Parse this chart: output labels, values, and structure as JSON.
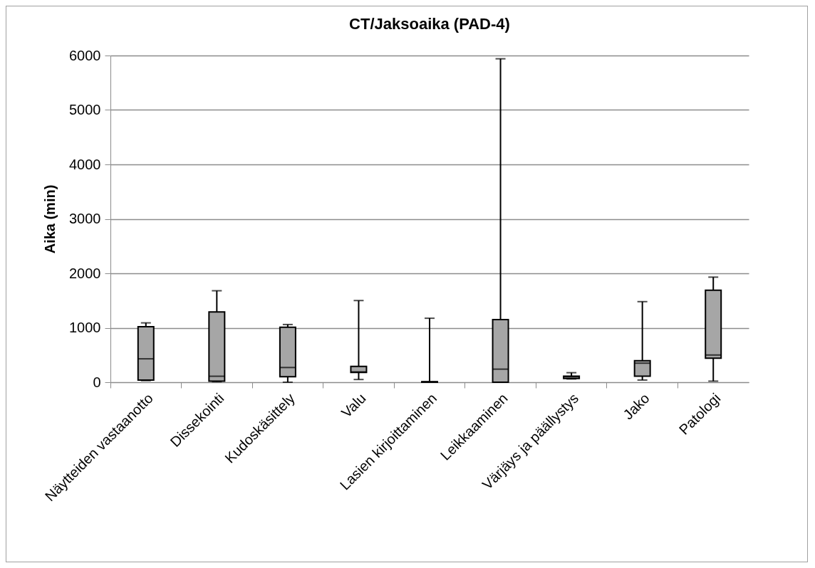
{
  "chart_data": {
    "type": "box",
    "title": "CT/Jaksoaika (PAD-4)",
    "ylabel": "Aika (min)",
    "categories": [
      "Näytteiden vastaanotto",
      "Dissekointi",
      "Kudoskäsittely",
      "Valu",
      "Lasien kirjoittaminen",
      "Leikkaaminen",
      "Värjäys ja päällystys",
      "Jako",
      "Patologi"
    ],
    "series": [
      {
        "color": "#a6a6a6",
        "boxes": [
          {
            "low": 30,
            "q1": 40,
            "median": 430,
            "q3": 1020,
            "high": 1090
          },
          {
            "low": 10,
            "q1": 20,
            "median": 110,
            "q3": 1290,
            "high": 1680
          },
          {
            "low": 0,
            "q1": 100,
            "median": 270,
            "q3": 1010,
            "high": 1060
          },
          {
            "low": 50,
            "q1": 180,
            "median": 190,
            "q3": 290,
            "high": 1500
          },
          {
            "low": 0,
            "q1": 0,
            "median": 5,
            "q3": 10,
            "high": 1175
          },
          {
            "low": 0,
            "q1": 0,
            "median": 240,
            "q3": 1150,
            "high": 5940
          },
          {
            "low": 60,
            "q1": 70,
            "median": 100,
            "q3": 110,
            "high": 175
          },
          {
            "low": 40,
            "q1": 110,
            "median": 350,
            "q3": 395,
            "high": 1480
          },
          {
            "low": 20,
            "q1": 440,
            "median": 500,
            "q3": 1690,
            "high": 1930
          }
        ]
      }
    ],
    "ylim": [
      0,
      6000
    ],
    "yticks": [
      0,
      1000,
      2000,
      3000,
      4000,
      5000,
      6000
    ],
    "grid": "y"
  }
}
